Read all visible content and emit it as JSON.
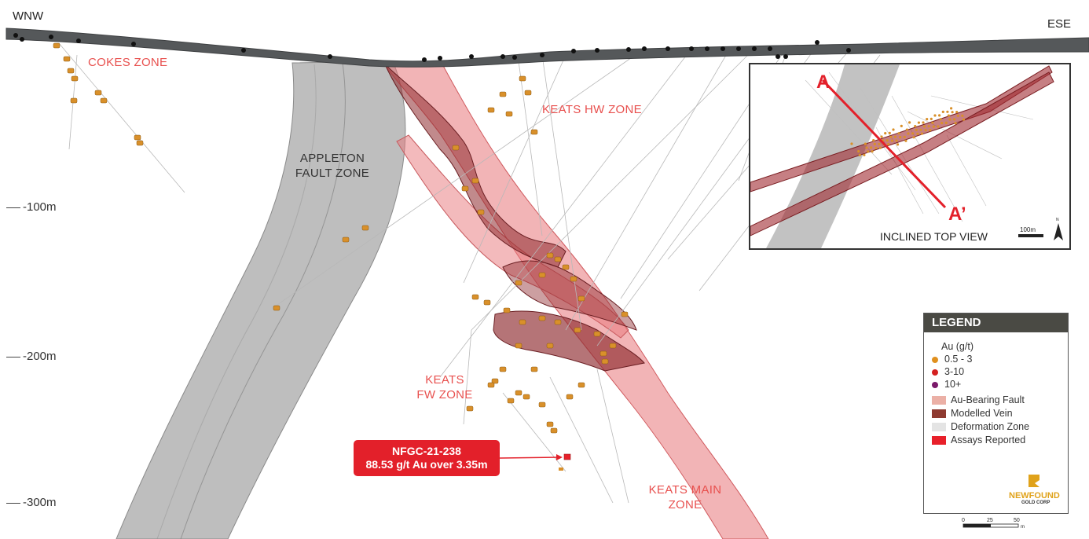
{
  "directions": {
    "left": "WNW",
    "right": "ESE"
  },
  "depth_labels": [
    "-100m",
    "-200m",
    "-300m"
  ],
  "zones": {
    "cokes": "COKES ZONE",
    "keats_hw": "KEATS HW ZONE",
    "appleton_line1": "APPLETON",
    "appleton_line2": "FAULT ZONE",
    "keats_fw_line1": "KEATS",
    "keats_fw_line2": "FW ZONE",
    "keats_main_line1": "KEATS MAIN",
    "keats_main_line2": "ZONE"
  },
  "callout": {
    "hole_id": "NFGC-21-238",
    "result": "88.53 g/t Au over 3.35m"
  },
  "inset": {
    "title": "INCLINED TOP VIEW",
    "section_start": "A",
    "section_end": "A’",
    "scale_label": "100m",
    "north_label": "N"
  },
  "legend": {
    "title": "LEGEND",
    "unit_label": "Au (g/t)",
    "grades": [
      {
        "label": "0.5 - 3",
        "color": "#e0901e"
      },
      {
        "label": "3-10",
        "color": "#d42020"
      },
      {
        "label": "10+",
        "color": "#7a1a6a"
      }
    ],
    "units": [
      {
        "label": "Au-Bearing Fault",
        "color": "#ebb0a6"
      },
      {
        "label": "Modelled Vein",
        "color": "#8e3a30"
      },
      {
        "label": "Deformation Zone",
        "color": "#e4e4e4"
      },
      {
        "label": "Assays Reported",
        "color": "#e8202a"
      }
    ],
    "logo_line1": "NEWFOUND",
    "logo_line2": "GOLD CORP"
  },
  "scale_bar": {
    "ticks": [
      "0",
      "25",
      "50"
    ],
    "unit": "m"
  },
  "colors": {
    "topography": "#55585a",
    "fault_zone": "#a8a8a8",
    "au_fault": "#e8767a",
    "vein": "#8e2a2e",
    "zone_label": "#e8504e",
    "callout_bg": "#e3202a"
  }
}
